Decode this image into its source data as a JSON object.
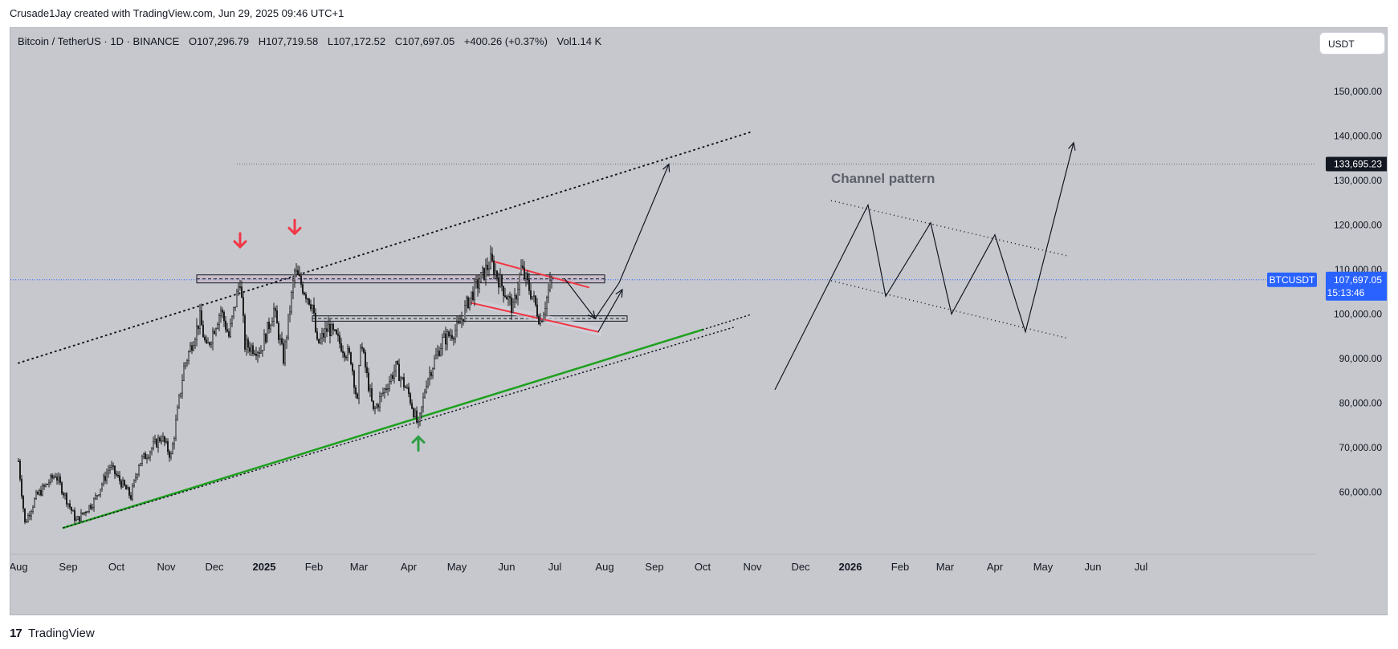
{
  "header": {
    "attribution": "Crusade1Jay created with TradingView.com, Jun 29, 2025 09:46 UTC+1"
  },
  "legend": {
    "symbol": "Bitcoin / TetherUS · 1D · BINANCE",
    "open": "O107,296.79",
    "high": "H107,719.58",
    "low": "L107,172.52",
    "close": "C107,697.05",
    "change": "+400.26 (+0.37%)",
    "volume": "Vol1.14 K"
  },
  "currency_button": "USDT",
  "price_axis": {
    "ticks": [
      "150,000.00",
      "140,000.00",
      "130,000.00",
      "120,000.00",
      "110,000.00",
      "100,000.00",
      "90,000.00",
      "80,000.00",
      "70,000.00",
      "60,000.00"
    ],
    "target_label": "133,695.23",
    "symbol_tag": "BTCUSDT",
    "last_price": "107,697.05",
    "countdown": "15:13:46"
  },
  "time_axis": {
    "labels": [
      "Aug",
      "Sep",
      "Oct",
      "Nov",
      "Dec",
      "2025",
      "Feb",
      "Mar",
      "Apr",
      "May",
      "Jun",
      "Jul",
      "Aug",
      "Sep",
      "Oct",
      "Nov",
      "Dec",
      "2026",
      "Feb",
      "Mar",
      "Apr",
      "May",
      "Jun",
      "Jul"
    ]
  },
  "annotation": {
    "channel_pattern": "Channel pattern"
  },
  "footer": {
    "logo": "17",
    "brand": "TradingView"
  },
  "colors": {
    "background": "#c6c8cd",
    "candle": "#1e1e1e",
    "resistance_arrow": "#f23645",
    "support_arrow": "#2e9e44",
    "support_line": "#1ea01e",
    "channel_lines": "#f23645",
    "last_price": "#2962ff",
    "target": "#131722"
  },
  "chart_data": {
    "type": "candlestick",
    "timeframe": "1D",
    "symbol": "BTCUSDT",
    "y_axis": {
      "min": 50000,
      "max": 160000
    },
    "x_axis": {
      "start": "2024-08",
      "end": "2026-07"
    },
    "last_price": 107697.05,
    "target_price": 133695.23,
    "price_path": [
      [
        "2024-08-01",
        67000
      ],
      [
        "2024-08-05",
        53000
      ],
      [
        "2024-08-12",
        59000
      ],
      [
        "2024-08-24",
        64000
      ],
      [
        "2024-09-06",
        53500
      ],
      [
        "2024-09-17",
        58000
      ],
      [
        "2024-09-27",
        65800
      ],
      [
        "2024-10-10",
        59000
      ],
      [
        "2024-10-15",
        66500
      ],
      [
        "2024-10-21",
        69000
      ],
      [
        "2024-10-29",
        72500
      ],
      [
        "2024-11-04",
        68000
      ],
      [
        "2024-11-12",
        88000
      ],
      [
        "2024-11-22",
        99000
      ],
      [
        "2024-11-26",
        92000
      ],
      [
        "2024-12-05",
        101000
      ],
      [
        "2024-12-10",
        95000
      ],
      [
        "2024-12-17",
        108000
      ],
      [
        "2024-12-20",
        93000
      ],
      [
        "2024-12-30",
        92000
      ],
      [
        "2025-01-07",
        101000
      ],
      [
        "2025-01-13",
        90000
      ],
      [
        "2025-01-20",
        109500
      ],
      [
        "2025-01-31",
        102000
      ],
      [
        "2025-02-03",
        93000
      ],
      [
        "2025-02-10",
        97000
      ],
      [
        "2025-02-24",
        90000
      ],
      [
        "2025-02-28",
        80000
      ],
      [
        "2025-03-02",
        94000
      ],
      [
        "2025-03-10",
        78000
      ],
      [
        "2025-03-24",
        88000
      ],
      [
        "2025-04-01",
        82000
      ],
      [
        "2025-04-07",
        74500
      ],
      [
        "2025-04-12",
        85000
      ],
      [
        "2025-04-22",
        94000
      ],
      [
        "2025-05-02",
        97000
      ],
      [
        "2025-05-08",
        103000
      ],
      [
        "2025-05-22",
        111800
      ],
      [
        "2025-06-05",
        101000
      ],
      [
        "2025-06-10",
        110200
      ],
      [
        "2025-06-17",
        104000
      ],
      [
        "2025-06-22",
        98400
      ],
      [
        "2025-06-29",
        107697
      ]
    ],
    "levels": [
      {
        "name": "resistance-zone",
        "from": 107000,
        "to": 108800
      },
      {
        "name": "support-zone",
        "from": 98400,
        "to": 99600
      },
      {
        "name": "target",
        "value": 133695.23
      }
    ],
    "trendlines": [
      {
        "name": "upper-channel",
        "style": "dotted",
        "from": [
          "2024-08-01",
          89000
        ],
        "to": [
          "2025-11-01",
          141000
        ]
      },
      {
        "name": "lower-support",
        "style": "dotted-green",
        "from": [
          "2024-08-29",
          52000
        ],
        "to": [
          "2025-10-20",
          97000
        ]
      },
      {
        "name": "flag-top",
        "style": "red",
        "from": [
          "2025-05-22",
          112000
        ],
        "to": [
          "2025-07-22",
          106000
        ]
      },
      {
        "name": "flag-bottom",
        "style": "red",
        "from": [
          "2025-05-10",
          102500
        ],
        "to": [
          "2025-07-28",
          96000
        ]
      }
    ],
    "projection": [
      [
        "2025-07-07",
        108000
      ],
      [
        "2025-07-26",
        99000
      ],
      [
        "2025-08-10",
        107000
      ],
      [
        "2025-09-10",
        133695
      ]
    ],
    "channel_pattern_schematic": [
      [
        "2025-11-15",
        83000
      ],
      [
        "2026-01-12",
        124500
      ],
      [
        "2026-01-23",
        104000
      ],
      [
        "2026-02-20",
        120500
      ],
      [
        "2026-03-05",
        100000
      ],
      [
        "2026-04-01",
        117800
      ],
      [
        "2026-04-20",
        96000
      ],
      [
        "2026-05-20",
        138500
      ]
    ],
    "markers": [
      {
        "type": "down-arrow",
        "date": "2024-12-17",
        "price": 116500
      },
      {
        "type": "down-arrow",
        "date": "2025-01-20",
        "price": 119500
      },
      {
        "type": "up-arrow",
        "date": "2025-04-07",
        "price": 71000
      }
    ]
  }
}
